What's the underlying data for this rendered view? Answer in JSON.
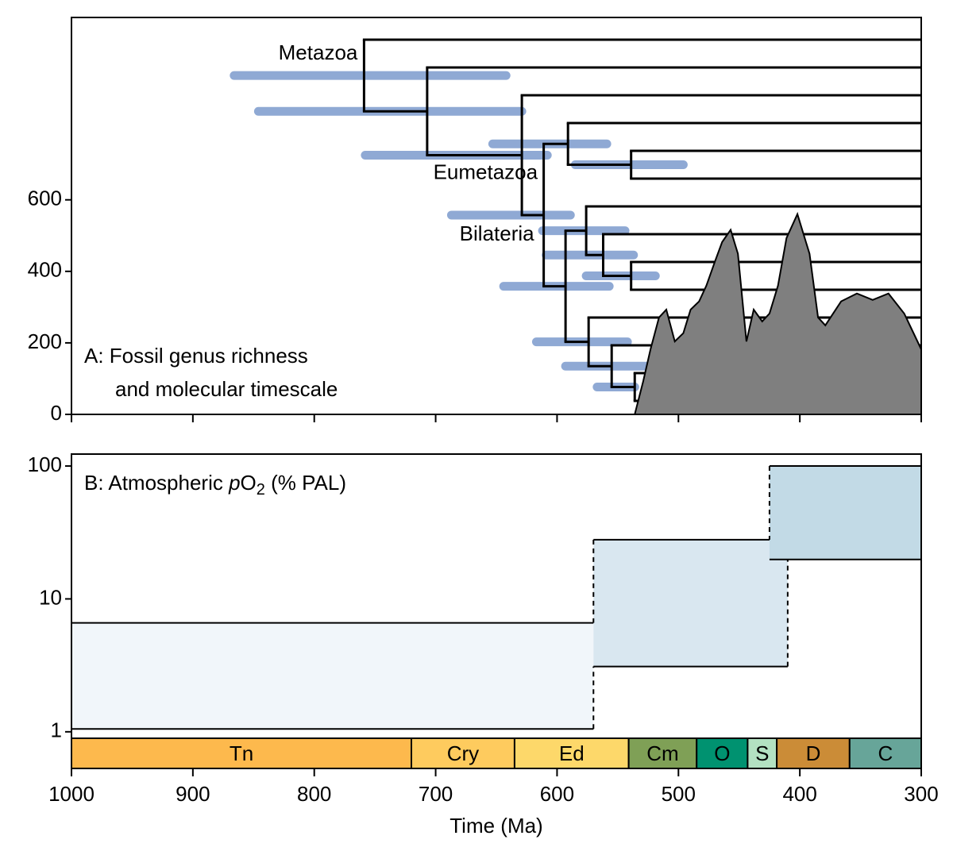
{
  "chart_data": [
    {
      "type": "area",
      "label": [
        "A: Fossil genus richness",
        "and molecular timescale"
      ],
      "ylim": [
        0,
        1110
      ],
      "yticks": [
        0,
        200,
        400,
        600
      ],
      "color": "#7f7f7f",
      "x": [
        536,
        529,
        523,
        516,
        510,
        503,
        496,
        490,
        483,
        477,
        470,
        464,
        457,
        451,
        444,
        438,
        431,
        425,
        418,
        411,
        402,
        392,
        385,
        379,
        366,
        353,
        340,
        327,
        314,
        300
      ],
      "values": [
        0,
        93,
        182,
        271,
        293,
        204,
        227,
        293,
        316,
        360,
        427,
        482,
        516,
        449,
        204,
        293,
        260,
        282,
        360,
        493,
        560,
        449,
        271,
        249,
        316,
        338,
        320,
        338,
        282,
        182
      ],
      "tree": {
        "color": "#000000",
        "ci_color": "#8fa9d4",
        "nodes": [
          {
            "label": "Metazoa",
            "age": 759,
            "ci": [
              866,
              642
            ]
          },
          {
            "age": 707,
            "ci": [
              846,
              629
            ]
          },
          {
            "label": "Eumetazoa",
            "age": 629,
            "ci": [
              758,
              608
            ]
          },
          {
            "label": "Bilateria",
            "age": 611,
            "ci": [
              687,
              589
            ]
          },
          {
            "age": 591,
            "ci": [
              653,
              559
            ]
          },
          {
            "age": 593,
            "ci": [
              644,
              557
            ]
          },
          {
            "age": 539,
            "ci": [
              585,
              496
            ]
          },
          {
            "age": 576,
            "ci": [
              612,
              544
            ]
          },
          {
            "age": 574,
            "ci": [
              617,
              542
            ]
          },
          {
            "age": 562,
            "ci": [
              609,
              537
            ]
          },
          {
            "age": 539,
            "ci": [
              576,
              519
            ]
          },
          {
            "age": 555,
            "ci": [
              593,
              526
            ]
          },
          {
            "age": 536,
            "ci": [
              567,
              536
            ]
          }
        ]
      }
    },
    {
      "type": "band",
      "label": [
        "B: Atmospheric ",
        "p",
        "O",
        "2",
        " (% PAL)"
      ],
      "log_scale": true,
      "ylim": [
        0.53,
        123
      ],
      "yticks": [
        1,
        10,
        100
      ],
      "xlim": [
        1000,
        300
      ],
      "xticks": [
        1000,
        900,
        800,
        700,
        600,
        500,
        400,
        300
      ],
      "x_label": "Time (Ma)",
      "intervals": [
        {
          "start": 1000,
          "end": 570,
          "low": 1.05,
          "high": 6.6,
          "color": "#f1f6fa"
        },
        {
          "start": 570,
          "end": 410,
          "low": 3.1,
          "high": 27.9,
          "color": "#d9e7f0"
        },
        {
          "start": 425,
          "end": 300,
          "low": 19.8,
          "high": 100,
          "color": "#c2dae6"
        }
      ],
      "periods": [
        {
          "name": "Tn",
          "start": 1000,
          "end": 720,
          "color": "#fdb94d"
        },
        {
          "name": "Cry",
          "start": 720,
          "end": 635,
          "color": "#fecb5e"
        },
        {
          "name": "Ed",
          "start": 635,
          "end": 541,
          "color": "#fdd86a"
        },
        {
          "name": "Cm",
          "start": 541,
          "end": 485,
          "color": "#7fa056"
        },
        {
          "name": "O",
          "start": 485,
          "end": 443,
          "color": "#009270"
        },
        {
          "name": "S",
          "start": 443,
          "end": 419,
          "color": "#b3e1c2"
        },
        {
          "name": "D",
          "start": 419,
          "end": 359,
          "color": "#cb8c37"
        },
        {
          "name": "C",
          "start": 359,
          "end": 300,
          "color": "#67a599"
        }
      ]
    }
  ]
}
